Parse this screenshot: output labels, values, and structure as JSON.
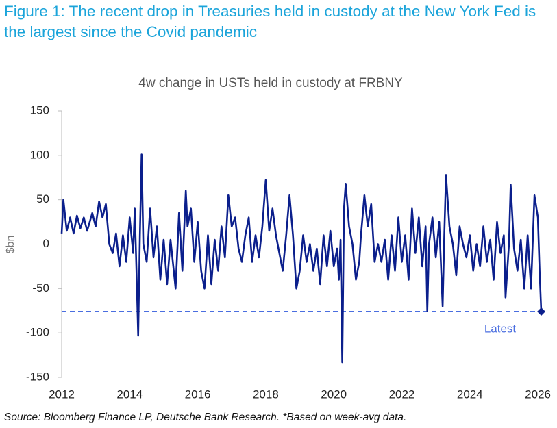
{
  "header": {
    "title": "Figure 1: The recent drop in Treasuries held in custody at the New York Fed is the largest since the Covid pandemic"
  },
  "chart_data": {
    "type": "line",
    "title": "4w change in USTs held in custody at FRBNY",
    "y_label": "$bn",
    "x": [
      2012.0,
      2012.05,
      2012.15,
      2012.25,
      2012.35,
      2012.45,
      2012.55,
      2012.65,
      2012.75,
      2012.9,
      2013.0,
      2013.1,
      2013.2,
      2013.3,
      2013.4,
      2013.5,
      2013.6,
      2013.7,
      2013.8,
      2013.9,
      2014.0,
      2014.1,
      2014.15,
      2014.2,
      2014.25,
      2014.3,
      2014.35,
      2014.4,
      2014.5,
      2014.6,
      2014.7,
      2014.8,
      2014.9,
      2015.0,
      2015.1,
      2015.2,
      2015.35,
      2015.45,
      2015.55,
      2015.65,
      2015.7,
      2015.8,
      2015.9,
      2016.0,
      2016.1,
      2016.2,
      2016.3,
      2016.4,
      2016.5,
      2016.6,
      2016.7,
      2016.8,
      2016.9,
      2017.0,
      2017.1,
      2017.2,
      2017.3,
      2017.4,
      2017.5,
      2017.6,
      2017.7,
      2017.8,
      2017.9,
      2018.0,
      2018.1,
      2018.2,
      2018.3,
      2018.4,
      2018.5,
      2018.6,
      2018.7,
      2018.8,
      2018.9,
      2019.0,
      2019.1,
      2019.2,
      2019.3,
      2019.4,
      2019.5,
      2019.6,
      2019.7,
      2019.8,
      2019.9,
      2020.0,
      2020.1,
      2020.15,
      2020.2,
      2020.25,
      2020.3,
      2020.35,
      2020.45,
      2020.55,
      2020.65,
      2020.75,
      2020.8,
      2020.9,
      2021.0,
      2021.1,
      2021.2,
      2021.3,
      2021.4,
      2021.5,
      2021.6,
      2021.7,
      2021.8,
      2021.9,
      2022.0,
      2022.1,
      2022.2,
      2022.3,
      2022.4,
      2022.5,
      2022.6,
      2022.7,
      2022.75,
      2022.8,
      2022.9,
      2023.0,
      2023.1,
      2023.2,
      2023.25,
      2023.3,
      2023.4,
      2023.5,
      2023.6,
      2023.7,
      2023.8,
      2023.9,
      2024.0,
      2024.1,
      2024.2,
      2024.3,
      2024.4,
      2024.5,
      2024.6,
      2024.7,
      2024.8,
      2024.9,
      2025.0,
      2025.05,
      2025.15,
      2025.2,
      2025.3,
      2025.4,
      2025.5,
      2025.6,
      2025.7,
      2025.8,
      2025.9,
      2026.0,
      2026.05,
      2026.1
    ],
    "series": [
      {
        "name": "4w change",
        "color": "#0b1f8c",
        "values": [
          12,
          50,
          15,
          30,
          12,
          32,
          18,
          30,
          15,
          35,
          20,
          48,
          30,
          45,
          0,
          -10,
          12,
          -25,
          10,
          -20,
          30,
          -10,
          40,
          -30,
          -103,
          10,
          101,
          0,
          -20,
          40,
          -15,
          20,
          -40,
          5,
          -45,
          5,
          -50,
          35,
          -30,
          60,
          20,
          40,
          -20,
          25,
          -30,
          -50,
          10,
          -45,
          5,
          -30,
          20,
          -15,
          55,
          20,
          30,
          -5,
          -20,
          10,
          30,
          -20,
          10,
          -15,
          20,
          72,
          15,
          40,
          10,
          -10,
          -30,
          10,
          55,
          10,
          -50,
          -30,
          10,
          -20,
          0,
          -30,
          -5,
          -45,
          10,
          -25,
          15,
          -25,
          -5,
          -40,
          5,
          -133,
          40,
          68,
          20,
          0,
          -40,
          -20,
          10,
          55,
          20,
          45,
          -20,
          0,
          -20,
          5,
          -40,
          10,
          -30,
          30,
          -20,
          10,
          -40,
          40,
          -10,
          30,
          -25,
          20,
          -75,
          0,
          30,
          -15,
          25,
          -70,
          10,
          78,
          20,
          0,
          -35,
          20,
          0,
          -15,
          10,
          -30,
          0,
          -25,
          20,
          -20,
          5,
          -40,
          25,
          -10,
          10,
          -60,
          0,
          67,
          -5,
          -30,
          5,
          -50,
          10,
          -50,
          55,
          30,
          -30,
          -76
        ]
      }
    ],
    "xlim": [
      2012,
      2026.2
    ],
    "ylim": [
      -150,
      150
    ],
    "xticks": [
      2012,
      2014,
      2016,
      2018,
      2020,
      2022,
      2024,
      2026
    ],
    "yticks": [
      -150,
      -100,
      -50,
      0,
      50,
      100,
      150
    ],
    "annotation": "Latest",
    "reference_color": "#4a6ee0"
  },
  "footer": {
    "source": "Source: Bloomberg Finance LP, Deutsche Bank Research. *Based on week-avg data."
  }
}
